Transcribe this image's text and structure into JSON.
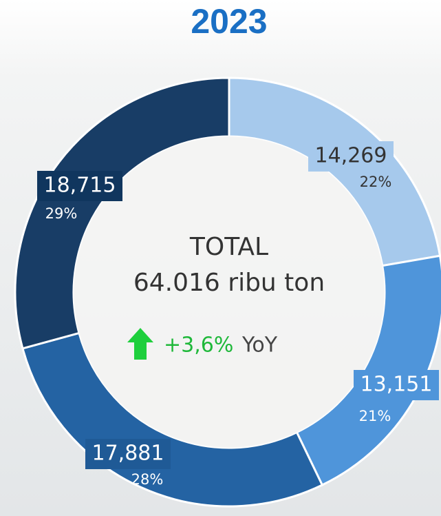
{
  "chart_data": {
    "type": "donut",
    "title": "2023",
    "categories": [
      null,
      null,
      null,
      null
    ],
    "values": [
      14269,
      13151,
      17881,
      18715
    ],
    "value_labels": [
      "14,269",
      "13,151",
      "17,881",
      "18,715"
    ],
    "shares": [
      22,
      21,
      28,
      29
    ],
    "share_labels": [
      "22%",
      "21%",
      "28%",
      "29%"
    ],
    "colors": [
      "#a6c9ec",
      "#4f95da",
      "#2463a3",
      "#183d66"
    ],
    "center_title": "TOTAL",
    "total": 64016,
    "total_label": "64.016 ribu ton",
    "growth": 3.6,
    "growth_label": "+3,6%",
    "growth_suffix": "YoY"
  }
}
